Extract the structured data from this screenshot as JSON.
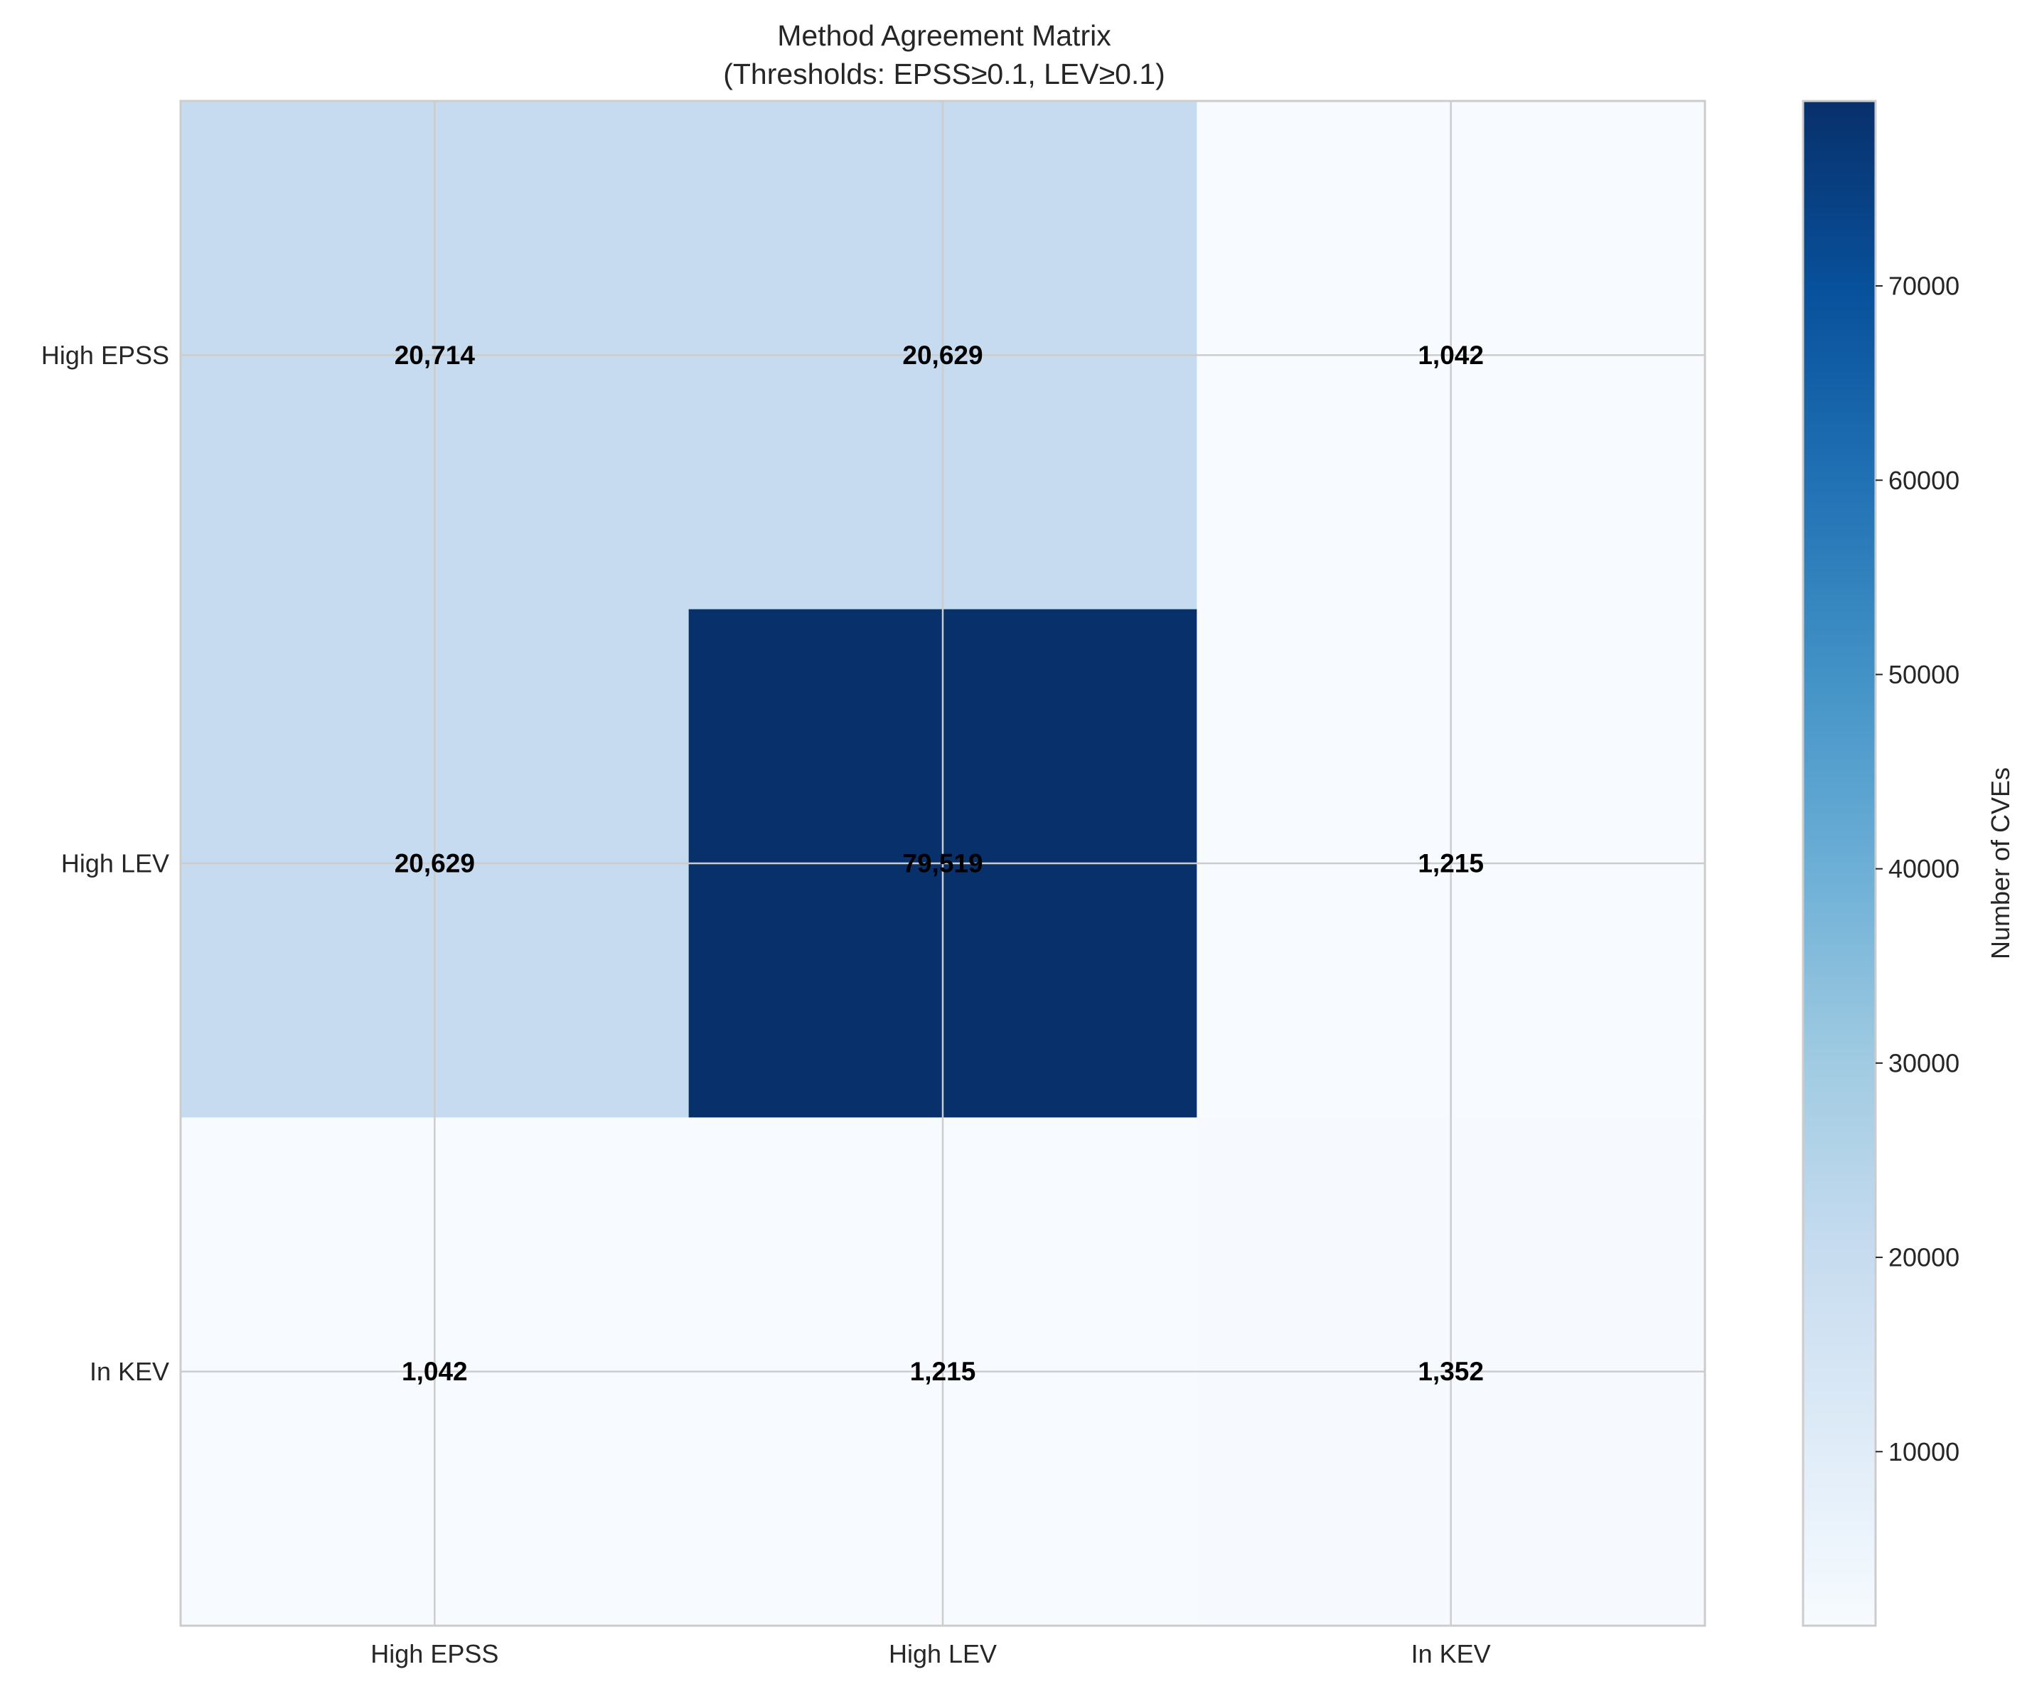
{
  "chart_data": {
    "type": "heatmap",
    "title": "Method Agreement Matrix",
    "subtitle": "(Thresholds: EPSS≥0.1, LEV≥0.1)",
    "row_labels": [
      "High EPSS",
      "High LEV",
      "In KEV"
    ],
    "col_labels": [
      "High EPSS",
      "High LEV",
      "In KEV"
    ],
    "values": [
      [
        20714,
        20629,
        1042
      ],
      [
        20629,
        79519,
        1215
      ],
      [
        1042,
        1215,
        1352
      ]
    ],
    "value_labels": [
      [
        "20,714",
        "20,629",
        "1,042"
      ],
      [
        "20,629",
        "79,519",
        "1,215"
      ],
      [
        "1,042",
        "1,215",
        "1,352"
      ]
    ],
    "colormap": "Blues",
    "color_range": [
      1042,
      79519
    ],
    "colorbar": {
      "label": "Number of CVEs",
      "ticks": [
        10000,
        20000,
        30000,
        40000,
        50000,
        60000,
        70000
      ],
      "tick_labels": [
        "10000",
        "20000",
        "30000",
        "40000",
        "50000",
        "60000",
        "70000"
      ]
    },
    "grid": true
  }
}
